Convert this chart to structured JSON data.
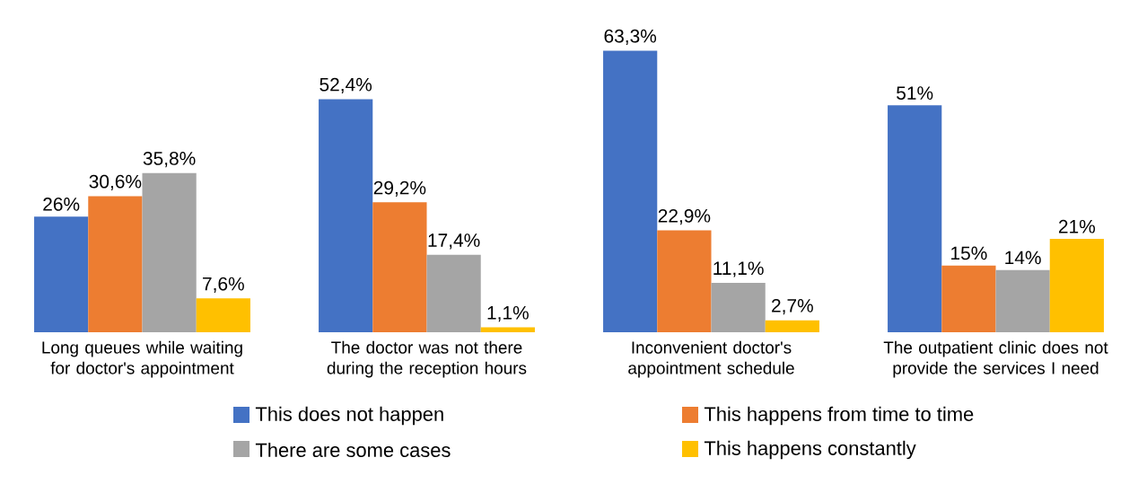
{
  "chart_data": {
    "type": "bar",
    "categories": [
      "Long queues while waiting for doctor's appointment",
      "The doctor was not there during the reception hours",
      "Inconvenient doctor's appointment schedule",
      "The outpatient clinic does not provide the services I need"
    ],
    "series": [
      {
        "name": "This does not happen",
        "color": "#4472c4",
        "values": [
          26,
          52.4,
          63.3,
          51
        ],
        "value_labels": [
          "26%",
          "52,4%",
          "63,3%",
          "51%"
        ]
      },
      {
        "name": "This happens from time to time",
        "color": "#ed7d31",
        "values": [
          30.6,
          29.2,
          22.9,
          15
        ],
        "value_labels": [
          "30,6%",
          "29,2%",
          "22,9%",
          "15%"
        ]
      },
      {
        "name": "There are some cases",
        "color": "#a5a5a5",
        "values": [
          35.8,
          17.4,
          11.1,
          14
        ],
        "value_labels": [
          "35,8%",
          "17,4%",
          "11,1%",
          "14%"
        ]
      },
      {
        "name": "This happens constantly",
        "color": "#ffc000",
        "values": [
          7.6,
          1.1,
          2.7,
          21
        ],
        "value_labels": [
          "7,6%",
          "1,1%",
          "2,7%",
          "21%"
        ]
      }
    ],
    "legend": "bottom"
  }
}
